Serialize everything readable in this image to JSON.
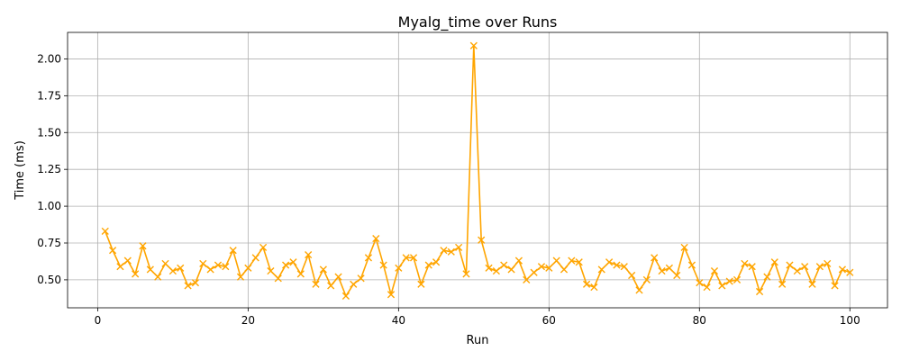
{
  "chart_data": {
    "type": "line",
    "title": "Myalg_time over Runs",
    "xlabel": "Run",
    "ylabel": "Time (ms)",
    "xlim": [
      -4,
      105
    ],
    "ylim": [
      0.31,
      2.18
    ],
    "xticks": [
      0,
      20,
      40,
      60,
      80,
      100
    ],
    "yticks": [
      0.5,
      0.75,
      1.0,
      1.25,
      1.5,
      1.75,
      2.0
    ],
    "xtick_labels": [
      "0",
      "20",
      "40",
      "60",
      "80",
      "100"
    ],
    "ytick_labels": [
      "0.50",
      "0.75",
      "1.00",
      "1.25",
      "1.50",
      "1.75",
      "2.00"
    ],
    "grid": true,
    "marker": "x",
    "color": "#ffa500",
    "series": [
      {
        "x": [
          1,
          2,
          3,
          4,
          5,
          6,
          7,
          8,
          9,
          10,
          11,
          12,
          13,
          14,
          15,
          16,
          17,
          18,
          19,
          20,
          21,
          22,
          23,
          24,
          25,
          26,
          27,
          28,
          29,
          30,
          31,
          32,
          33,
          34,
          35,
          36,
          37,
          38,
          39,
          40,
          41,
          42,
          43,
          44,
          45,
          46,
          47,
          48,
          49,
          50,
          51,
          52,
          53,
          54,
          55,
          56,
          57,
          58,
          59,
          60,
          61,
          62,
          63,
          64,
          65,
          66,
          67,
          68,
          69,
          70,
          71,
          72,
          73,
          74,
          75,
          76,
          77,
          78,
          79,
          80,
          81,
          82,
          83,
          84,
          85,
          86,
          87,
          88,
          89,
          90,
          91,
          92,
          93,
          94,
          95,
          96,
          97,
          98,
          99,
          100
        ],
        "values": [
          0.83,
          0.7,
          0.59,
          0.63,
          0.54,
          0.73,
          0.57,
          0.52,
          0.61,
          0.56,
          0.58,
          0.46,
          0.48,
          0.61,
          0.57,
          0.6,
          0.59,
          0.7,
          0.52,
          0.58,
          0.65,
          0.72,
          0.56,
          0.51,
          0.6,
          0.62,
          0.54,
          0.67,
          0.47,
          0.57,
          0.46,
          0.52,
          0.39,
          0.47,
          0.51,
          0.65,
          0.78,
          0.6,
          0.4,
          0.58,
          0.65,
          0.65,
          0.47,
          0.6,
          0.62,
          0.7,
          0.69,
          0.72,
          0.54,
          2.09,
          0.77,
          0.58,
          0.56,
          0.6,
          0.57,
          0.63,
          0.5,
          0.55,
          0.59,
          0.58,
          0.63,
          0.57,
          0.63,
          0.62,
          0.47,
          0.45,
          0.57,
          0.62,
          0.6,
          0.59,
          0.53,
          0.43,
          0.5,
          0.65,
          0.56,
          0.58,
          0.53,
          0.72,
          0.6,
          0.48,
          0.45,
          0.56,
          0.46,
          0.49,
          0.5,
          0.61,
          0.59,
          0.42,
          0.52,
          0.62,
          0.47,
          0.6,
          0.56,
          0.59,
          0.47,
          0.59,
          0.61,
          0.46,
          0.57,
          0.55
        ]
      }
    ]
  }
}
